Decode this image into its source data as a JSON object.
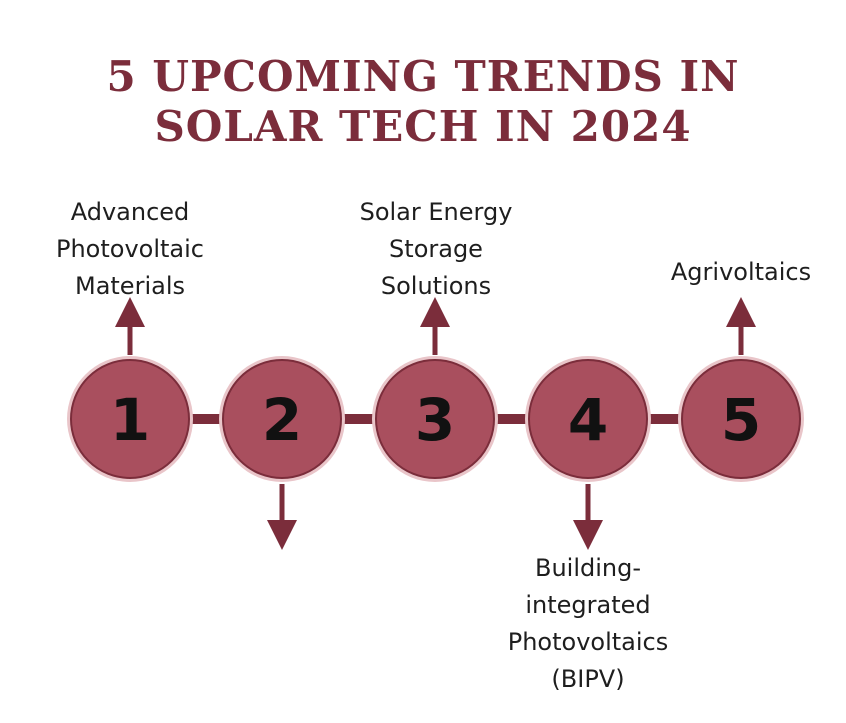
{
  "title": {
    "line1": "5 UPCOMING TRENDS IN",
    "line2": "SOLAR TECH IN 2024"
  },
  "colors": {
    "accent": "#7b2d3b",
    "circle_fill": "#a94f5e",
    "circle_ring": "#e9c5c9",
    "connector": "#7b2d3b"
  },
  "steps": [
    {
      "number": "1",
      "direction": "up",
      "label": [
        "Advanced",
        "Photovoltaic",
        "Materials"
      ]
    },
    {
      "number": "2",
      "direction": "down",
      "label": []
    },
    {
      "number": "3",
      "direction": "up",
      "label": [
        "Solar Energy",
        "Storage",
        "Solutions"
      ]
    },
    {
      "number": "4",
      "direction": "down",
      "label": [
        "Building-",
        "integrated",
        "Photovoltaics",
        "(BIPV)"
      ]
    },
    {
      "number": "5",
      "direction": "up",
      "label": [
        "Agrivoltaics"
      ]
    }
  ]
}
